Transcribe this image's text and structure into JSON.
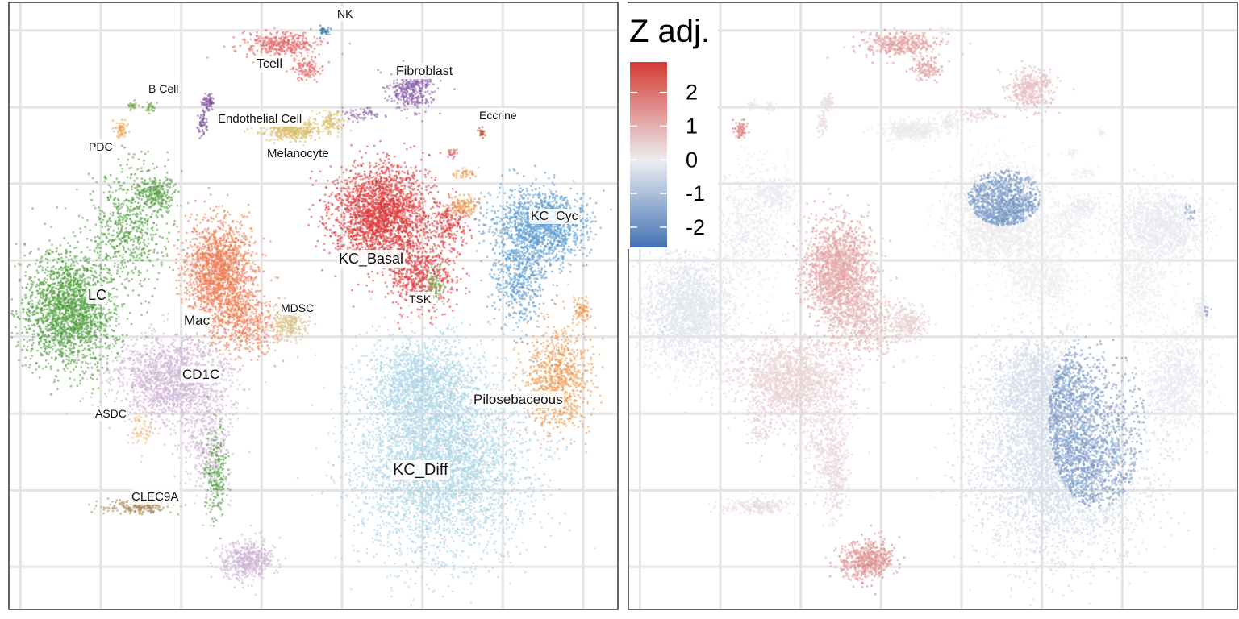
{
  "chart_data": [
    {
      "type": "scatter",
      "title": "",
      "xlabel": "",
      "ylabel": "",
      "grid": true,
      "clusters": [
        {
          "name": "NK",
          "color": "#2a7aa6"
        },
        {
          "name": "Tcell",
          "color": "#e66a6a"
        },
        {
          "name": "Fibroblast",
          "color": "#8e63ab"
        },
        {
          "name": "B Cell",
          "color": "#76a84a"
        },
        {
          "name": "Endothelial Cell",
          "color": "#7e4f99"
        },
        {
          "name": "Eccrine",
          "color": "#b5502a"
        },
        {
          "name": "PDC",
          "color": "#f1a55a"
        },
        {
          "name": "Melanocyte",
          "color": "#d9bd6a"
        },
        {
          "name": "KC_Cyc",
          "color": "#5b9bcf"
        },
        {
          "name": "KC_Basal",
          "color": "#de3a3a"
        },
        {
          "name": "LC",
          "color": "#4e9f3d"
        },
        {
          "name": "TSK",
          "color": "#74b65f"
        },
        {
          "name": "Mac",
          "color": "#ee7b52"
        },
        {
          "name": "MDSC",
          "color": "#d8c38a"
        },
        {
          "name": "CD1C",
          "color": "#cdb3d3"
        },
        {
          "name": "Pilosebaceous",
          "color": "#ee9a52"
        },
        {
          "name": "ASDC",
          "color": "#f5b873"
        },
        {
          "name": "KC_Diff",
          "color": "#a9d4e6"
        },
        {
          "name": "CLEC9A",
          "color": "#a98a5f"
        }
      ]
    },
    {
      "type": "scatter",
      "title": "",
      "colorbar": {
        "title": "Z adj.",
        "ticks": [
          "2",
          "1",
          "0",
          "-1",
          "-2"
        ],
        "range": [
          -2.6,
          2.9
        ],
        "colors": [
          "#4372b3",
          "#edeef2",
          "#d63a33"
        ]
      },
      "grid": true
    }
  ]
}
